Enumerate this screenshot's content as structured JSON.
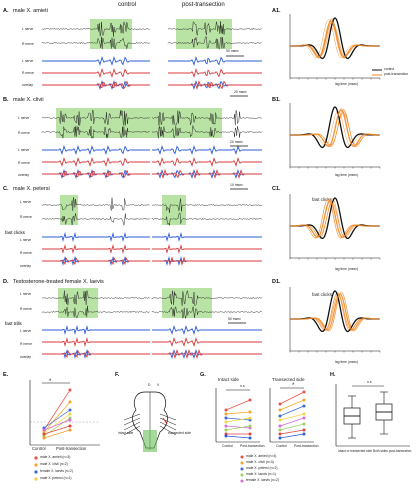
{
  "headers": {
    "control": "control",
    "post": "post-transection"
  },
  "panels": {
    "A": {
      "letter": "A.",
      "title": "male X. amieti"
    },
    "B": {
      "letter": "B.",
      "title": "male X. clivii"
    },
    "C": {
      "letter": "C.",
      "title": "male X. petersi"
    },
    "D": {
      "letter": "D.",
      "title": "Testosterone-treated female X. laevis"
    },
    "A1": {
      "letter": "A1."
    },
    "B1": {
      "letter": "B1."
    },
    "C1": {
      "letter": "C1."
    },
    "D1": {
      "letter": "D1."
    },
    "E": {
      "letter": "E."
    },
    "F": {
      "letter": "F."
    },
    "G": {
      "letter": "G."
    },
    "H": {
      "letter": "H."
    }
  },
  "trace_labels": {
    "l_nerve": "L nerve",
    "r_nerve": "R nerve",
    "overlay": "overlay"
  },
  "scales": {
    "a": "50 msec",
    "a2": "20 msec",
    "b": "20 msec",
    "b2": "10 msec",
    "d": "50 msec"
  },
  "sublabels": {
    "fast_clicks": "fast clicks",
    "fast_trills": "fast trills"
  },
  "corr": {
    "ylabel": "cross-correlation coefficient",
    "xlabel": "lag time (msec)",
    "legend_control": "control",
    "legend_post": "post-transection",
    "c1_note": "fast clicks",
    "d1_note": "fast clicks"
  },
  "panelE": {
    "ylabel": "Maximum lag time (ms)",
    "x_control": "Control",
    "x_post": "Post-transection",
    "star": "*",
    "legend": [
      "male X. amieti (n=3)",
      "male X. clivii (n=2)",
      "female X. laevis (n=2)",
      "male X. petersi (n=1)"
    ]
  },
  "panelF": {
    "intact": "intact side",
    "transected": "transected side",
    "labels": [
      "D",
      "V"
    ]
  },
  "panelG": {
    "title_left": "Intact side",
    "title_right": "Transected side",
    "ylabel": "CAP amplitude",
    "x_control": "Control",
    "x_post": "Post-transection",
    "ns": "n.s.",
    "star": "*",
    "legend": [
      "male X. amieti (n=4)",
      "male X. clivii (n=3)",
      "male X. petersi (n=2)",
      "male X. laevis (n=1)",
      "female X. laevis (n=2)"
    ]
  },
  "panelH": {
    "ylabel": "Time lag (ms)",
    "ns": "n.s.",
    "x1": "Intact or transected side",
    "x2": "Both sides post-transection"
  },
  "colors": {
    "highlight": "#b9e3a4",
    "lnerve": "#2b5bd7",
    "rnerve": "#d83a3a",
    "control": "#111111",
    "post": "#f08a24"
  }
}
